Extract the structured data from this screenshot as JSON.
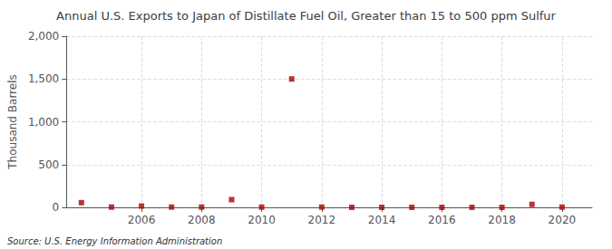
{
  "chart_data": {
    "type": "scatter",
    "title": "Annual U.S. Exports to Japan of Distillate Fuel Oil, Greater than 15 to 500 ppm Sulfur",
    "ylabel": "Thousand Barrels",
    "annotation": "Source: U.S. Energy Information Administration",
    "x": [
      2004,
      2005,
      2006,
      2007,
      2008,
      2009,
      2010,
      2011,
      2012,
      2013,
      2014,
      2015,
      2016,
      2017,
      2018,
      2019,
      2020
    ],
    "values": [
      55,
      3,
      15,
      3,
      3,
      90,
      3,
      1500,
      3,
      0,
      0,
      0,
      0,
      0,
      0,
      35,
      3
    ],
    "color": "#aa0000",
    "marker": "square",
    "xlim": [
      2003.5,
      2021.0
    ],
    "xticks": [
      2006,
      2008,
      2010,
      2012,
      2014,
      2016,
      2018,
      2020
    ],
    "ylim": [
      0,
      2000
    ],
    "yticks": [
      0,
      500,
      {
        "value": 1000,
        "label": "1,000"
      },
      {
        "value": 1500,
        "label": "1,500"
      },
      {
        "value": 2000,
        "label": "2,000"
      }
    ],
    "grid": true
  }
}
